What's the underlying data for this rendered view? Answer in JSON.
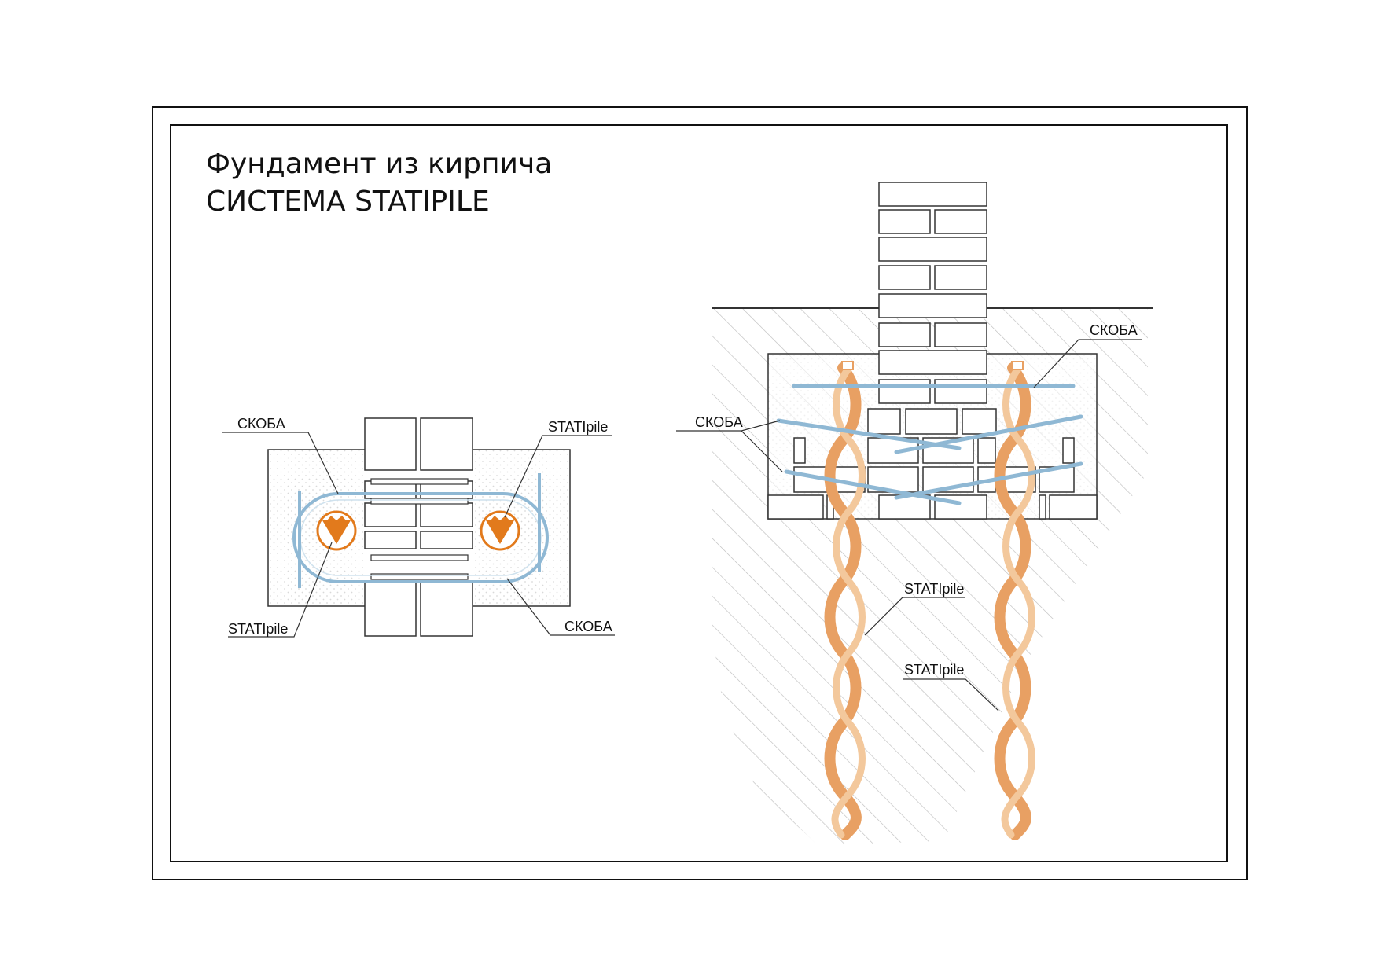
{
  "title": {
    "line1": "Фундамент из кирпича",
    "line2": "СИСТЕМА STATIPILE"
  },
  "plan_view": {
    "label_skoba_top": "СКОБА",
    "label_statipile_top": "STATIpile",
    "label_statipile_bottom": "STATIpile",
    "label_skoba_bottom": "СКОБА"
  },
  "section_view": {
    "label_skoba_right": "СКОБА",
    "label_skoba_left": "СКОБА",
    "label_statipile_upper": "STATIpile",
    "label_statipile_lower": "STATIpile"
  },
  "colors": {
    "frame": "#111111",
    "line": "#333333",
    "hatch": "#bbbbbb",
    "bracket": "#8fb8d4",
    "pile": "#e8a063",
    "pile_fill": "#f7e2cc",
    "marker": "#e27a1c",
    "concrete_dot": "#d6d6d6"
  }
}
